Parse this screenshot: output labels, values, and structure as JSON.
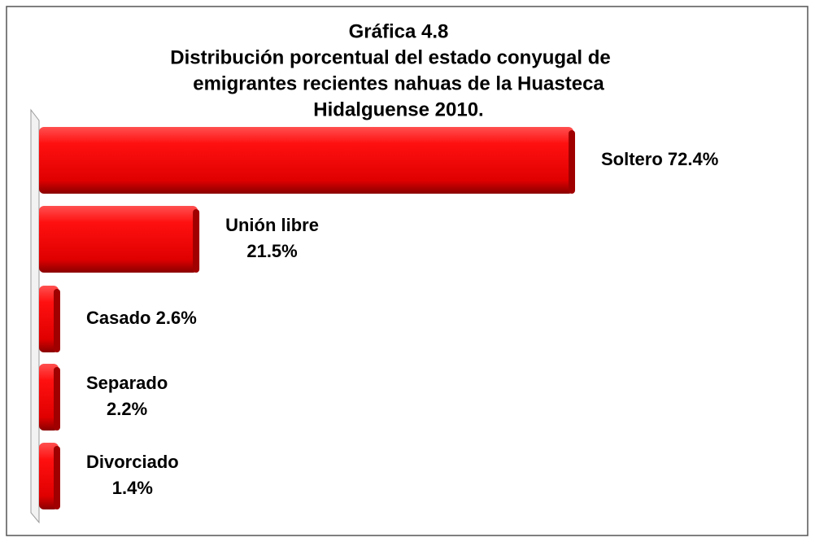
{
  "chart_data": {
    "type": "bar",
    "orientation": "horizontal",
    "title": [
      "Gráfica 4.8",
      "Distribución porcentual del estado conyugal de",
      "emigrantes recientes nahuas de la Huasteca",
      "Hidalguense 2010."
    ],
    "categories": [
      "Soltero",
      "Unión libre",
      "Casado",
      "Separado",
      "Divorciado"
    ],
    "values": [
      72.4,
      21.5,
      2.6,
      2.2,
      1.4
    ],
    "value_labels": [
      "72.4%",
      "21.5%",
      "2.6%",
      "2.2%",
      "1.4%"
    ],
    "color": "#e00000"
  }
}
